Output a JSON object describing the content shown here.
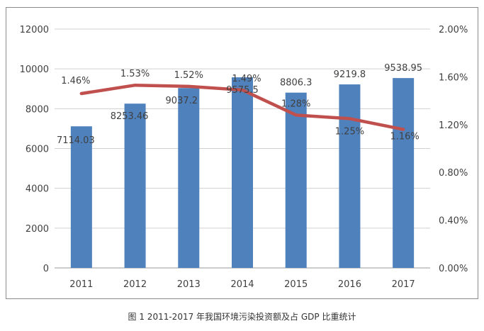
{
  "chart_data": {
    "type": "bar",
    "categories": [
      "2011",
      "2012",
      "2013",
      "2014",
      "2015",
      "2016",
      "2017"
    ],
    "series": [
      {
        "type": "bar",
        "axis": "left",
        "values": [
          7114.03,
          8253.46,
          9037.2,
          9575.5,
          8806.3,
          9219.8,
          9538.95
        ],
        "labels": [
          "7114.03",
          "8253.46",
          "9037.2",
          "9575.5",
          "8806.3",
          "9219.8",
          "9538.95"
        ],
        "color": "#4f81bd"
      },
      {
        "type": "line",
        "axis": "right",
        "values": [
          1.46,
          1.53,
          1.52,
          1.49,
          1.28,
          1.25,
          1.16
        ],
        "labels": [
          "1.46%",
          "1.53%",
          "1.52%",
          "1.49%",
          "1.28%",
          "1.25%",
          "1.16%"
        ],
        "color": "#c0504d"
      }
    ],
    "y_left": {
      "range": [
        0,
        12000
      ],
      "ticks": [
        "0",
        "2000",
        "4000",
        "6000",
        "8000",
        "10000",
        "12000"
      ]
    },
    "y_right": {
      "range": [
        0,
        2.0
      ],
      "ticks": [
        "0.00%",
        "0.40%",
        "0.80%",
        "1.20%",
        "1.60%",
        "2.00%"
      ]
    },
    "grid": true,
    "legend": "none"
  },
  "caption": "图 1  2011-2017 年我国环境污染投资额及占 GDP 比重统计"
}
